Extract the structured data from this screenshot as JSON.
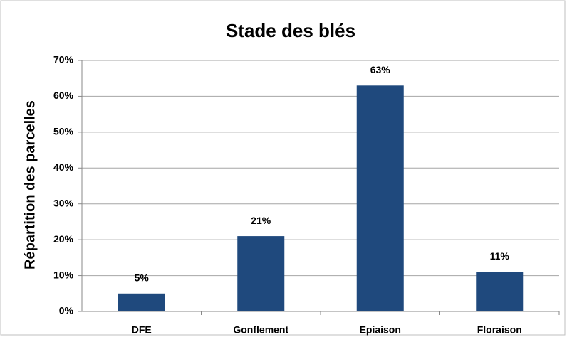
{
  "chart_data": {
    "type": "bar",
    "title": "Stade des blés",
    "y_label": "Répartition des parcelles",
    "categories": [
      "DFE",
      "Gonflement",
      "Epiaison",
      "Floraison"
    ],
    "values": [
      5,
      21,
      63,
      11
    ],
    "value_labels": [
      "5%",
      "21%",
      "63%",
      "11%"
    ],
    "color": "#1f497d",
    "ylim": [
      0,
      70
    ],
    "yticks": [
      {
        "value": 0,
        "label": "0%"
      },
      {
        "value": 10,
        "label": "10%"
      },
      {
        "value": 20,
        "label": "20%"
      },
      {
        "value": 30,
        "label": "30%"
      },
      {
        "value": 40,
        "label": "40%"
      },
      {
        "value": 50,
        "label": "50%"
      },
      {
        "value": 60,
        "label": "60%"
      },
      {
        "value": 70,
        "label": "70%"
      }
    ],
    "grid": true
  }
}
